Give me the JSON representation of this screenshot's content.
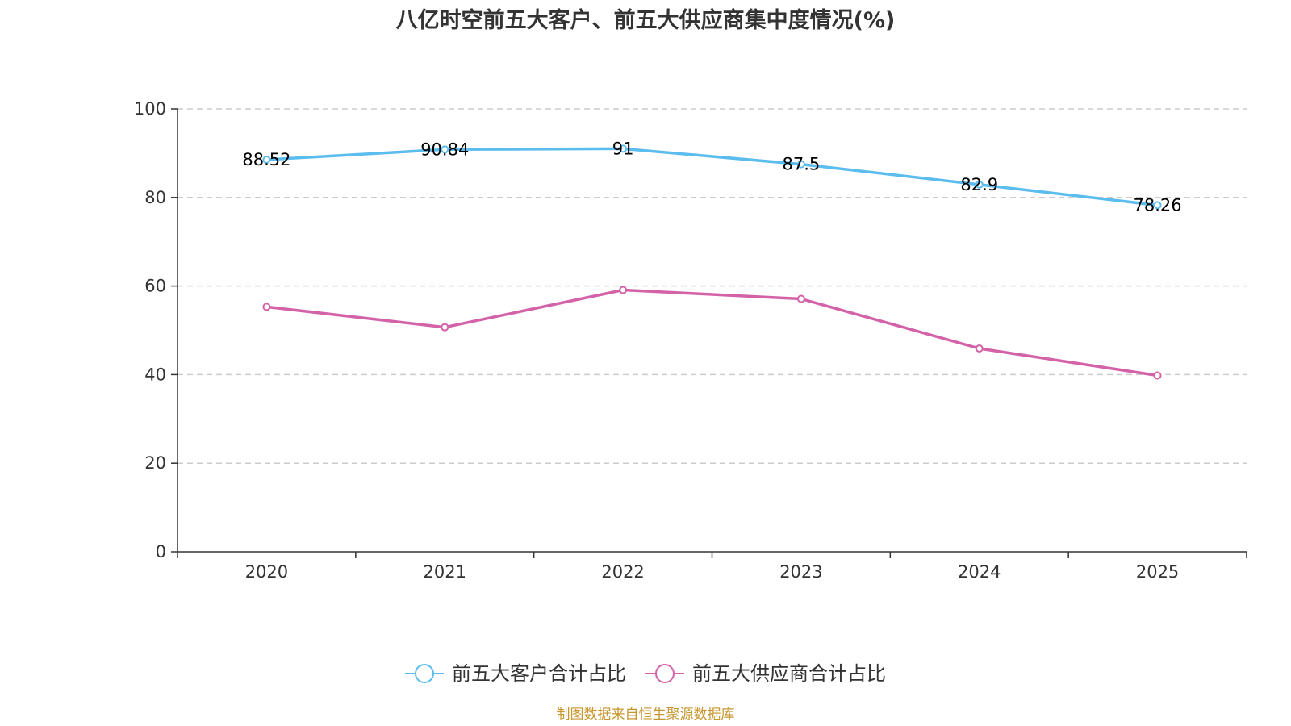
{
  "chart_data": {
    "type": "line",
    "title": "八亿时空前五大客户、前五大供应商集中度情况(%)",
    "categories": [
      "2020",
      "2021",
      "2022",
      "2023",
      "2024",
      "2025"
    ],
    "series": [
      {
        "name": "前五大客户合计占比",
        "color": "#5bbcee",
        "values": [
          88.52,
          90.84,
          91,
          87.5,
          82.9,
          78.26
        ],
        "show_labels": true
      },
      {
        "name": "前五大供应商合计占比",
        "color": "#d462a8",
        "values": [
          55.3,
          50.7,
          59.1,
          57.1,
          45.9,
          39.8
        ],
        "show_labels": false
      }
    ],
    "ylim": [
      0,
      100
    ],
    "yticks": [
      0,
      20,
      40,
      60,
      80,
      100
    ],
    "grid": true,
    "legend": "bottom-center",
    "xlabel": "",
    "ylabel": ""
  },
  "source": "制图数据来自恒生聚源数据库",
  "colors": {
    "axis": "#333333",
    "grid": "#cccccc",
    "source": "#c8962e"
  }
}
